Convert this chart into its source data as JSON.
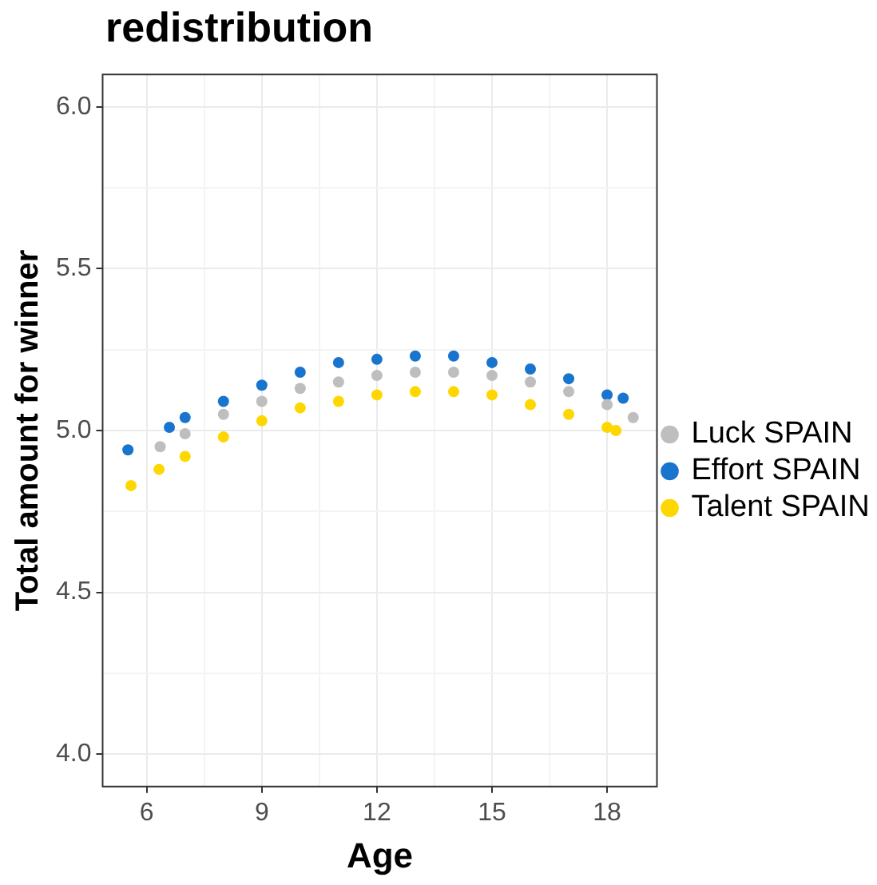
{
  "chart_data": {
    "type": "scatter",
    "title": "redistribution",
    "xlabel": "Age",
    "ylabel": "Total amount for winner",
    "xlim": [
      4.85,
      19.3
    ],
    "ylim": [
      3.9,
      6.1
    ],
    "xticks": [
      6,
      {
        "value": 7.5,
        "label": null
      },
      9,
      {
        "value": 10.5,
        "label": null
      },
      12,
      {
        "value": 13.5,
        "label": null
      },
      15,
      {
        "value": 16.5,
        "label": null
      },
      18
    ],
    "yticks": [
      {
        "value": 4,
        "label": "4.0"
      },
      {
        "value": 4.25,
        "label": null
      },
      4.5,
      {
        "value": 4.75,
        "label": null
      },
      {
        "value": 5,
        "label": "5.0"
      },
      {
        "value": 5.25,
        "label": null
      },
      5.5,
      {
        "value": 5.75,
        "label": null
      },
      {
        "value": 6,
        "label": "6.0"
      }
    ],
    "grid": true,
    "legend": "right",
    "marker": "circle",
    "series": [
      {
        "name": "Luck SPAIN",
        "color": "#bebebe",
        "x": [
          6.35,
          7,
          8,
          9,
          10,
          11,
          12,
          13,
          14,
          15,
          16,
          17,
          18,
          18.68
        ],
        "values": [
          4.95,
          4.99,
          5.05,
          5.09,
          5.13,
          5.15,
          5.17,
          5.18,
          5.18,
          5.17,
          5.15,
          5.12,
          5.08,
          5.04
        ]
      },
      {
        "name": "Effort SPAIN",
        "color": "#1874cd",
        "x": [
          5.51,
          6.59,
          7,
          8,
          9,
          10,
          11,
          12,
          13,
          14,
          15,
          16,
          17,
          18,
          18.42
        ],
        "values": [
          4.94,
          5.01,
          5.04,
          5.09,
          5.14,
          5.18,
          5.21,
          5.22,
          5.23,
          5.23,
          5.21,
          5.19,
          5.16,
          5.11,
          5.1
        ]
      },
      {
        "name": "Talent SPAIN",
        "color": "#ffd700",
        "x": [
          5.59,
          6.32,
          7,
          8,
          9,
          10,
          11,
          12,
          13,
          14,
          15,
          16,
          17,
          18,
          18.23
        ],
        "values": [
          4.83,
          4.88,
          4.92,
          4.98,
          5.03,
          5.07,
          5.09,
          5.11,
          5.12,
          5.12,
          5.11,
          5.08,
          5.05,
          5.01,
          5.0
        ]
      }
    ]
  }
}
